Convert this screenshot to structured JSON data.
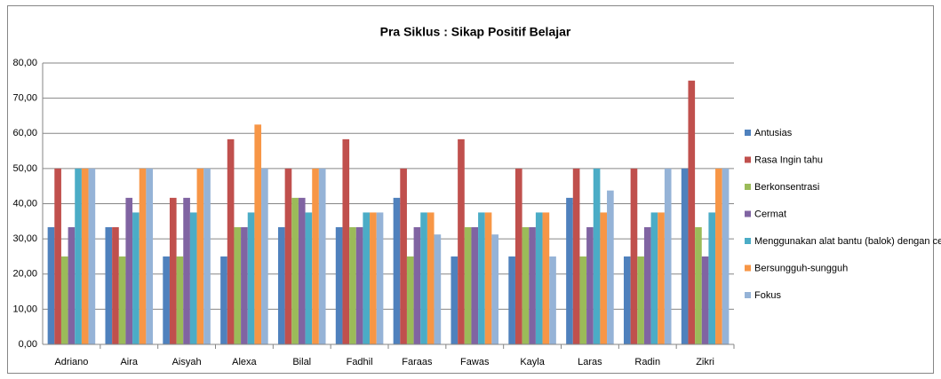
{
  "chart_data": {
    "type": "bar",
    "title": "Pra Siklus : Sikap Positif Belajar",
    "categories": [
      "Adriano",
      "Aira",
      "Aisyah",
      "Alexa",
      "Bilal",
      "Fadhil",
      "Faraas",
      "Fawas",
      "Kayla",
      "Laras",
      "Radin",
      "Zikri"
    ],
    "series": [
      {
        "name": "Antusias",
        "color": "#4f81bd",
        "values": [
          33.33,
          33.33,
          25,
          25,
          33.33,
          33.33,
          41.67,
          25,
          25,
          41.67,
          25,
          50
        ]
      },
      {
        "name": "Rasa Ingin tahu",
        "color": "#c0504d",
        "values": [
          50,
          33.33,
          41.67,
          58.33,
          50,
          58.33,
          50,
          58.33,
          50,
          50,
          50,
          75
        ]
      },
      {
        "name": "Berkonsentrasi",
        "color": "#9bbb59",
        "values": [
          25,
          25,
          25,
          33.33,
          41.67,
          33.33,
          25,
          33.33,
          33.33,
          25,
          25,
          33.33
        ]
      },
      {
        "name": "Cermat",
        "color": "#8064a2",
        "values": [
          33.33,
          41.67,
          41.67,
          33.33,
          41.67,
          33.33,
          33.33,
          33.33,
          33.33,
          33.33,
          33.33,
          25
        ]
      },
      {
        "name": "Menggunakan alat bantu (balok) dengan cepat",
        "color": "#4bacc6",
        "values": [
          50,
          37.5,
          37.5,
          37.5,
          37.5,
          37.5,
          37.5,
          37.5,
          37.5,
          50,
          37.5,
          37.5
        ]
      },
      {
        "name": "Bersungguh-sungguh",
        "color": "#f79646",
        "values": [
          50,
          50,
          50,
          62.5,
          50,
          37.5,
          37.5,
          37.5,
          37.5,
          37.5,
          37.5,
          50
        ]
      },
      {
        "name": "Fokus",
        "color": "#95b3d7",
        "values": [
          50,
          50,
          50,
          50,
          50,
          37.5,
          31.25,
          31.25,
          25,
          43.75,
          50,
          50
        ]
      }
    ],
    "ylim": [
      0,
      80
    ],
    "yticks": [
      {
        "value": 0,
        "label": "0,00"
      },
      {
        "value": 10,
        "label": "10,00"
      },
      {
        "value": 20,
        "label": "20,00"
      },
      {
        "value": 30,
        "label": "30,00"
      },
      {
        "value": 40,
        "label": "40,00"
      },
      {
        "value": 50,
        "label": "50,00"
      },
      {
        "value": 60,
        "label": "60,00"
      },
      {
        "value": 70,
        "label": "70,00"
      },
      {
        "value": 80,
        "label": "80,00"
      }
    ],
    "grid": true,
    "legend": "right"
  }
}
